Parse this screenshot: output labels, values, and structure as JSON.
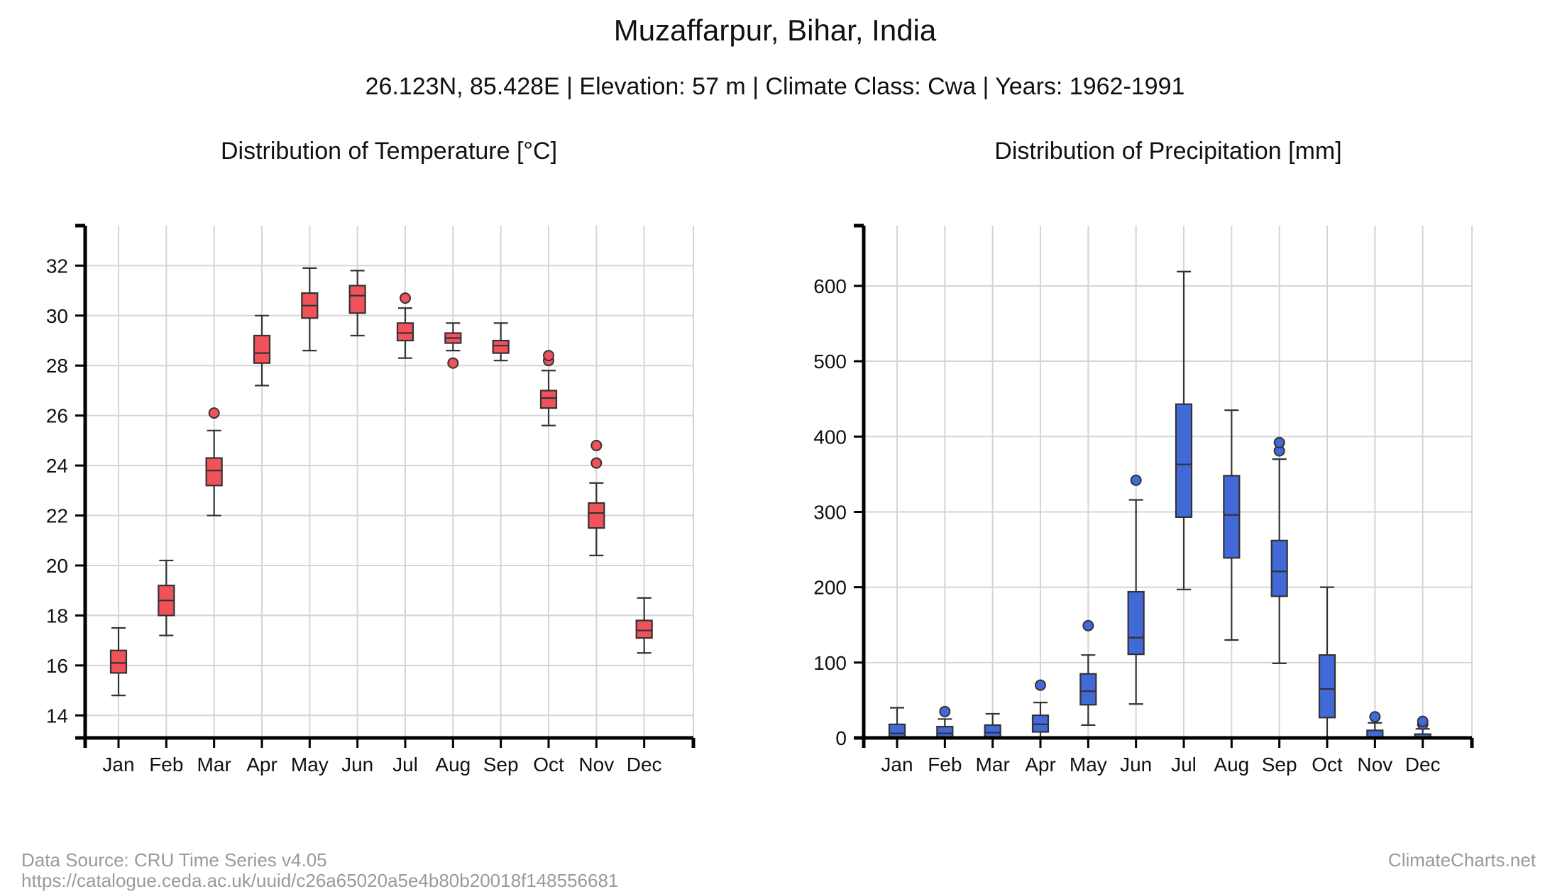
{
  "title": "Muzaffarpur, Bihar, India",
  "subtitle": "26.123N, 85.428E | Elevation: 57 m | Climate Class: Cwa | Years: 1962-1991",
  "footer": {
    "source": "Data Source: CRU Time Series v4.05",
    "url": "https://catalogue.ceda.ac.uk/uuid/c26a65020a5e4b80b20018f148556681",
    "brand": "ClimateCharts.net"
  },
  "chart_data": [
    {
      "type": "box",
      "title": "Distribution of Temperature [°C]",
      "xlabel": "",
      "ylabel": "",
      "color": "#f0525a",
      "categories": [
        "Jan",
        "Feb",
        "Mar",
        "Apr",
        "May",
        "Jun",
        "Jul",
        "Aug",
        "Sep",
        "Oct",
        "Nov",
        "Dec"
      ],
      "ylim": [
        13.1,
        33.6
      ],
      "yticks": [
        14,
        16,
        18,
        20,
        22,
        24,
        26,
        28,
        30,
        32
      ],
      "grid": true,
      "boxes": [
        {
          "min": 14.8,
          "q1": 15.7,
          "median": 16.1,
          "q3": 16.6,
          "max": 17.5,
          "outliers": []
        },
        {
          "min": 17.2,
          "q1": 18.0,
          "median": 18.6,
          "q3": 19.2,
          "max": 20.2,
          "outliers": []
        },
        {
          "min": 22.0,
          "q1": 23.2,
          "median": 23.8,
          "q3": 24.3,
          "max": 25.4,
          "outliers": [
            26.1
          ]
        },
        {
          "min": 27.2,
          "q1": 28.1,
          "median": 28.5,
          "q3": 29.2,
          "max": 30.0,
          "outliers": []
        },
        {
          "min": 28.6,
          "q1": 29.9,
          "median": 30.4,
          "q3": 30.9,
          "max": 31.9,
          "outliers": []
        },
        {
          "min": 29.2,
          "q1": 30.1,
          "median": 30.8,
          "q3": 31.2,
          "max": 31.8,
          "outliers": []
        },
        {
          "min": 28.3,
          "q1": 29.0,
          "median": 29.3,
          "q3": 29.7,
          "max": 30.3,
          "outliers": [
            30.7
          ]
        },
        {
          "min": 28.6,
          "q1": 28.9,
          "median": 29.1,
          "q3": 29.3,
          "max": 29.7,
          "outliers": [
            28.1
          ]
        },
        {
          "min": 28.2,
          "q1": 28.5,
          "median": 28.8,
          "q3": 29.0,
          "max": 29.7,
          "outliers": []
        },
        {
          "min": 25.6,
          "q1": 26.3,
          "median": 26.7,
          "q3": 27.0,
          "max": 27.8,
          "outliers": [
            28.2,
            28.4
          ]
        },
        {
          "min": 20.4,
          "q1": 21.5,
          "median": 22.1,
          "q3": 22.5,
          "max": 23.3,
          "outliers": [
            24.1,
            24.8
          ]
        },
        {
          "min": 16.5,
          "q1": 17.1,
          "median": 17.4,
          "q3": 17.8,
          "max": 18.7,
          "outliers": []
        }
      ]
    },
    {
      "type": "box",
      "title": "Distribution of Precipitation [mm]",
      "xlabel": "",
      "ylabel": "",
      "color": "#4169d8",
      "categories": [
        "Jan",
        "Feb",
        "Mar",
        "Apr",
        "May",
        "Jun",
        "Jul",
        "Aug",
        "Sep",
        "Oct",
        "Nov",
        "Dec"
      ],
      "ylim": [
        0,
        680
      ],
      "yticks": [
        0,
        100,
        200,
        300,
        400,
        500,
        600
      ],
      "grid": true,
      "boxes": [
        {
          "min": 0,
          "q1": 1,
          "median": 6,
          "q3": 18,
          "max": 40,
          "outliers": []
        },
        {
          "min": 0,
          "q1": 1,
          "median": 6,
          "q3": 15,
          "max": 25,
          "outliers": [
            35
          ]
        },
        {
          "min": 0,
          "q1": 1,
          "median": 7,
          "q3": 17,
          "max": 32,
          "outliers": []
        },
        {
          "min": 0,
          "q1": 8,
          "median": 18,
          "q3": 30,
          "max": 47,
          "outliers": [
            70
          ]
        },
        {
          "min": 17,
          "q1": 44,
          "median": 62,
          "q3": 85,
          "max": 110,
          "outliers": [
            149
          ]
        },
        {
          "min": 45,
          "q1": 111,
          "median": 133,
          "q3": 194,
          "max": 316,
          "outliers": [
            342
          ]
        },
        {
          "min": 197,
          "q1": 293,
          "median": 363,
          "q3": 443,
          "max": 619,
          "outliers": []
        },
        {
          "min": 130,
          "q1": 239,
          "median": 296,
          "q3": 348,
          "max": 435,
          "outliers": []
        },
        {
          "min": 99,
          "q1": 188,
          "median": 221,
          "q3": 262,
          "max": 370,
          "outliers": [
            381,
            392
          ]
        },
        {
          "min": 0,
          "q1": 27,
          "median": 65,
          "q3": 110,
          "max": 200,
          "outliers": []
        },
        {
          "min": 0,
          "q1": 0,
          "median": 1,
          "q3": 10,
          "max": 20,
          "outliers": [
            28
          ]
        },
        {
          "min": 0,
          "q1": 0,
          "median": 1,
          "q3": 5,
          "max": 12,
          "outliers": [
            18,
            22
          ]
        }
      ]
    }
  ]
}
